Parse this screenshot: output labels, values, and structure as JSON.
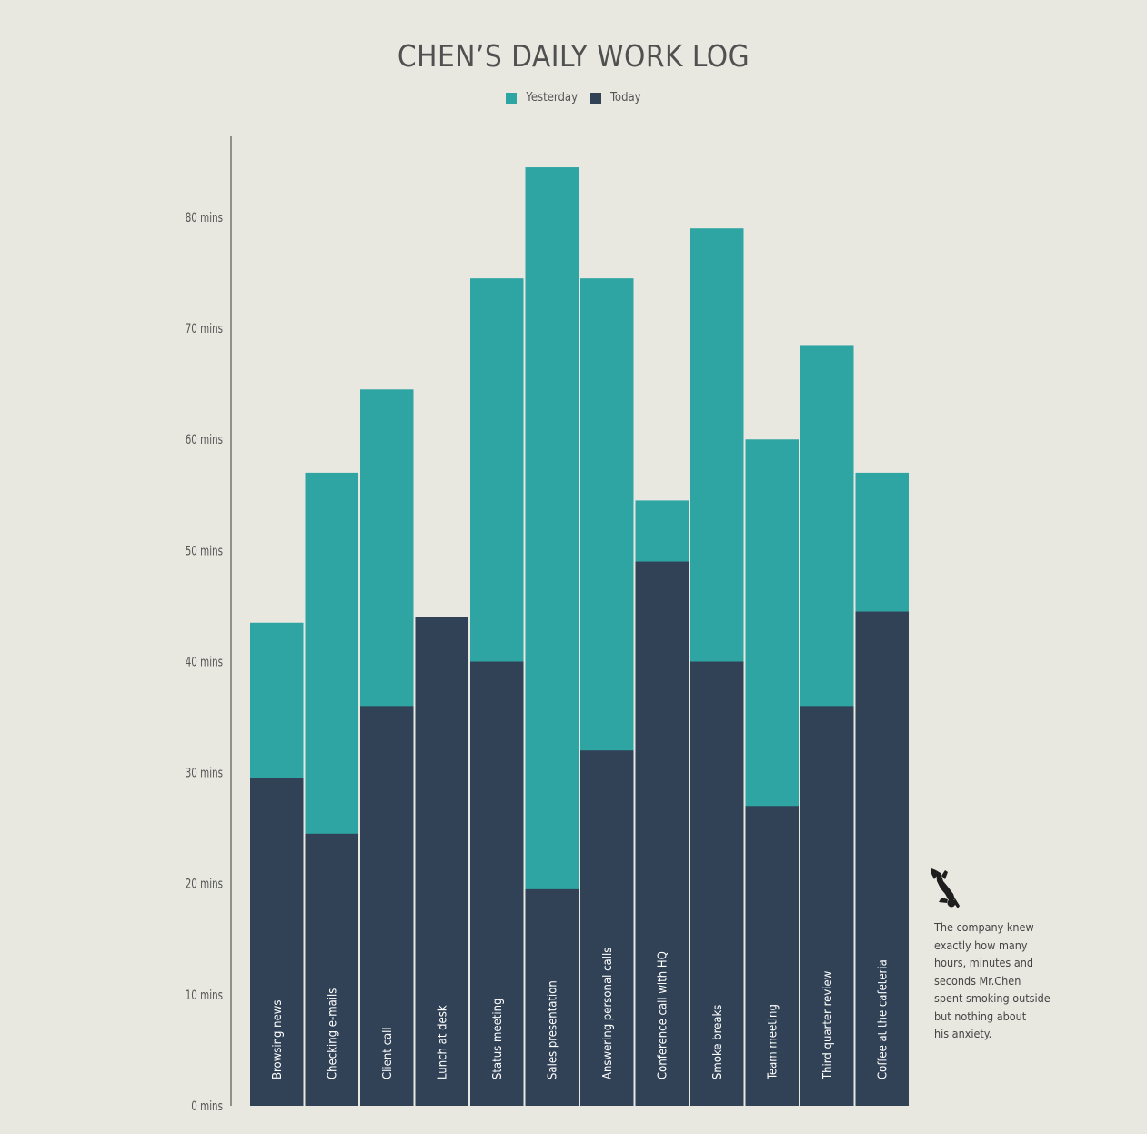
{
  "colors": {
    "yesterday": "#2fa5a3",
    "today": "#314256",
    "axis": "#555555",
    "background": "#e8e8e1"
  },
  "note": {
    "icon": "falling-person-icon",
    "lines": [
      "The company knew",
      "exactly how many",
      "hours, minutes and",
      "seconds Mr.Chen",
      "spent smoking outside",
      "but nothing about",
      "his anxiety."
    ]
  },
  "chart_data": {
    "type": "bar",
    "stacked": false,
    "overlap": true,
    "title": "CHEN’S DAILY WORK LOG",
    "xlabel": "",
    "ylabel": "",
    "ylim": [
      0,
      87
    ],
    "yticks": [
      0,
      10,
      20,
      30,
      40,
      50,
      60,
      70,
      80
    ],
    "ytick_labels": [
      "0 mins",
      "10 mins",
      "20 mins",
      "30 mins",
      "40 mins",
      "50 mins",
      "60 mins",
      "70 mins",
      "80 mins"
    ],
    "grid": false,
    "legend_position": "top-center",
    "categories": [
      "Browsing news",
      "Checking e-mails",
      "Client call",
      "Lunch at desk",
      "Status meeting",
      "Sales presentation",
      "Answering personal calls",
      "Conference call with HQ",
      "Smoke breaks",
      "Team meeting",
      "Third quarter review",
      "Coffee at the cafeteria"
    ],
    "series": [
      {
        "name": "Yesterday",
        "values": [
          43.5,
          57,
          64.5,
          43.5,
          74.5,
          84.5,
          74.5,
          54.5,
          79,
          60,
          68.5,
          57
        ]
      },
      {
        "name": "Today",
        "values": [
          29.5,
          24.5,
          36,
          44,
          40,
          19.5,
          32,
          49,
          40,
          27,
          36,
          44.5
        ]
      }
    ]
  }
}
